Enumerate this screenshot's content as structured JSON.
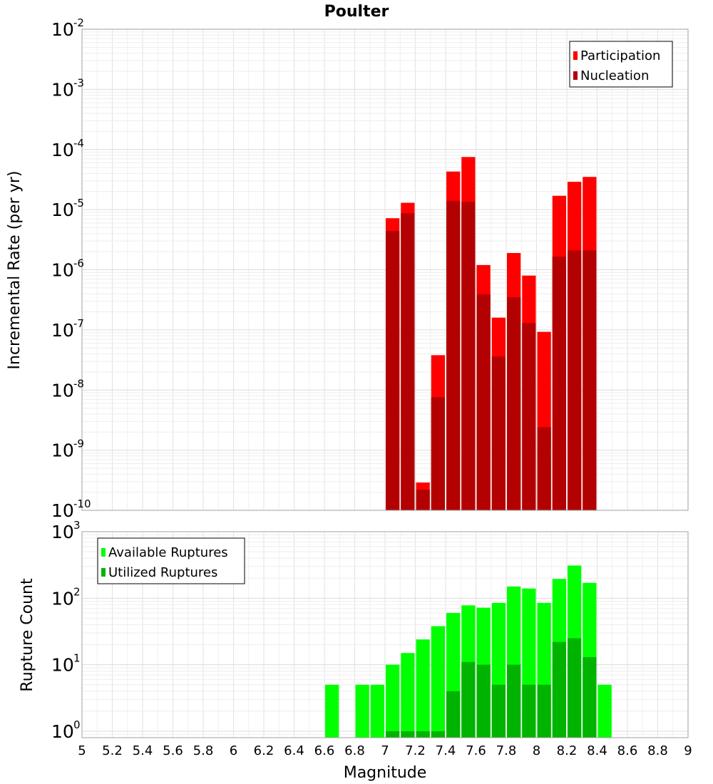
{
  "chart_data": [
    {
      "type": "bar",
      "title": "Poulter",
      "xlabel": "",
      "ylabel": "Incremental Rate (per yr)",
      "xlim": [
        5,
        9
      ],
      "ylim": [
        1e-10,
        0.01
      ],
      "yscale": "log",
      "y_tick_exponents": [
        "-10",
        "-9",
        "-8",
        "-7",
        "-6",
        "-5",
        "-4",
        "-3",
        "-2"
      ],
      "y_tick_base": "10",
      "grid": true,
      "legend_position": "top-right",
      "bin_width": 0.1,
      "x": [
        7.0,
        7.1,
        7.2,
        7.3,
        7.4,
        7.5,
        7.6,
        7.7,
        7.8,
        7.9,
        8.0,
        8.1,
        8.2,
        8.3
      ],
      "series": [
        {
          "name": "Participation",
          "color": "#ff0000",
          "values": [
            7.2e-06,
            1.3e-05,
            2.9e-10,
            3.8e-08,
            4.3e-05,
            7.5e-05,
            1.2e-06,
            1.6e-07,
            1.9e-06,
            8e-07,
            9.3e-08,
            1.7e-05,
            2.9e-05,
            3.5e-05
          ]
        },
        {
          "name": "Nucleation",
          "color": "#b30000",
          "values": [
            4.4e-06,
            8.7e-06,
            2.2e-10,
            7.6e-09,
            1.4e-05,
            1.35e-05,
            3.9e-07,
            3.6e-08,
            3.5e-07,
            1.3e-07,
            2.4e-09,
            1.65e-06,
            2.1e-06,
            2.1e-06
          ]
        }
      ]
    },
    {
      "type": "bar",
      "title": "",
      "xlabel": "Magnitude",
      "ylabel": "Rupture Count",
      "xlim": [
        5,
        9
      ],
      "ylim": [
        0.8,
        1000
      ],
      "yscale": "log",
      "y_tick_exponents": [
        "0",
        "1",
        "2",
        "3"
      ],
      "y_tick_base": "10",
      "x_tick_labels": [
        "5",
        "5.2",
        "5.4",
        "5.6",
        "5.8",
        "6",
        "6.2",
        "6.4",
        "6.6",
        "6.8",
        "7",
        "7.2",
        "7.4",
        "7.6",
        "7.8",
        "8",
        "8.2",
        "8.4",
        "8.6",
        "8.8",
        "9"
      ],
      "grid": true,
      "legend_position": "top-left",
      "bin_width": 0.1,
      "series": [
        {
          "name": "Available Ruptures",
          "color": "#00ff00",
          "x": [
            6.6,
            6.8,
            6.9,
            7.0,
            7.1,
            7.2,
            7.3,
            7.4,
            7.5,
            7.6,
            7.7,
            7.8,
            7.9,
            8.0,
            8.1,
            8.2,
            8.3,
            8.4
          ],
          "values": [
            5,
            5,
            5,
            10,
            15,
            24,
            38,
            60,
            78,
            72,
            85,
            150,
            140,
            85,
            195,
            310,
            170,
            5
          ]
        },
        {
          "name": "Utilized Ruptures",
          "color": "#00b300",
          "x": [
            7.0,
            7.1,
            7.2,
            7.3,
            7.4,
            7.5,
            7.6,
            7.7,
            7.8,
            7.9,
            8.0,
            8.1,
            8.2,
            8.3
          ],
          "values": [
            1,
            1,
            1,
            1,
            4,
            11,
            10,
            5,
            10,
            5,
            5,
            22,
            25,
            13
          ]
        }
      ]
    }
  ]
}
